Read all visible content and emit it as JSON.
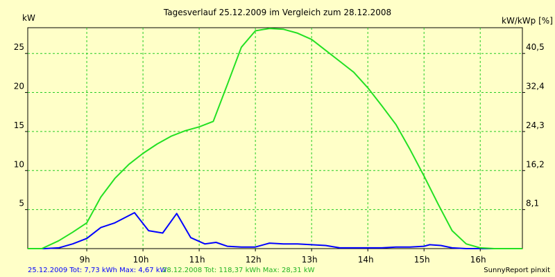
{
  "chart_data": {
    "type": "line",
    "title": "Tagesverlauf 25.12.2009 im Vergleich zum 28.12.2008",
    "ylabel_left": "kW",
    "ylabel_right": "kW/kWp [%]",
    "xticks": [
      {
        "v": 9,
        "label": "9h"
      },
      {
        "v": 10,
        "label": "10h"
      },
      {
        "v": 11,
        "label": "11h"
      },
      {
        "v": 12,
        "label": "12h"
      },
      {
        "v": 13,
        "label": "13h"
      },
      {
        "v": 14,
        "label": "14h"
      },
      {
        "v": 15,
        "label": "15h"
      },
      {
        "v": 16,
        "label": "16h"
      }
    ],
    "yticks_left": [
      {
        "v": 5,
        "label": "5"
      },
      {
        "v": 10,
        "label": "10"
      },
      {
        "v": 15,
        "label": "15"
      },
      {
        "v": 20,
        "label": "20"
      },
      {
        "v": 25,
        "label": "25"
      }
    ],
    "yticks_right": [
      {
        "v": 5,
        "label": "8,1"
      },
      {
        "v": 10,
        "label": "16,2"
      },
      {
        "v": 15,
        "label": "24,3"
      },
      {
        "v": 20,
        "label": "32,4"
      },
      {
        "v": 25,
        "label": "40,5"
      }
    ],
    "xlim": [
      7.95,
      16.75
    ],
    "ylim": [
      0,
      28.3
    ],
    "grid": true,
    "series": [
      {
        "name": "25.12.2009",
        "color": "#0000ff",
        "points": [
          [
            7.95,
            0
          ],
          [
            8.25,
            0
          ],
          [
            8.5,
            0.1
          ],
          [
            8.75,
            0.6
          ],
          [
            9.0,
            1.3
          ],
          [
            9.25,
            2.7
          ],
          [
            9.5,
            3.3
          ],
          [
            9.85,
            4.6
          ],
          [
            10.1,
            2.3
          ],
          [
            10.35,
            2.0
          ],
          [
            10.6,
            4.5
          ],
          [
            10.85,
            1.4
          ],
          [
            11.1,
            0.6
          ],
          [
            11.3,
            0.8
          ],
          [
            11.5,
            0.3
          ],
          [
            11.75,
            0.2
          ],
          [
            12.0,
            0.2
          ],
          [
            12.25,
            0.7
          ],
          [
            12.5,
            0.6
          ],
          [
            12.75,
            0.6
          ],
          [
            13.0,
            0.5
          ],
          [
            13.25,
            0.4
          ],
          [
            13.5,
            0.1
          ],
          [
            13.75,
            0.1
          ],
          [
            14.0,
            0.1
          ],
          [
            14.25,
            0.1
          ],
          [
            14.5,
            0.2
          ],
          [
            14.75,
            0.2
          ],
          [
            15.0,
            0.3
          ],
          [
            15.1,
            0.5
          ],
          [
            15.3,
            0.4
          ],
          [
            15.5,
            0.1
          ],
          [
            15.75,
            0
          ],
          [
            16.0,
            0
          ],
          [
            16.25,
            0
          ],
          [
            16.75,
            0
          ]
        ]
      },
      {
        "name": "28.12.2008",
        "color": "#22e022",
        "points": [
          [
            7.95,
            0
          ],
          [
            8.2,
            0
          ],
          [
            8.5,
            1.0
          ],
          [
            8.75,
            2.1
          ],
          [
            9.0,
            3.3
          ],
          [
            9.25,
            6.6
          ],
          [
            9.5,
            9.0
          ],
          [
            9.75,
            10.8
          ],
          [
            10.0,
            12.2
          ],
          [
            10.25,
            13.4
          ],
          [
            10.5,
            14.4
          ],
          [
            10.75,
            15.1
          ],
          [
            11.0,
            15.6
          ],
          [
            11.25,
            16.3
          ],
          [
            11.5,
            21.0
          ],
          [
            11.75,
            25.8
          ],
          [
            12.0,
            27.9
          ],
          [
            12.25,
            28.2
          ],
          [
            12.5,
            28.1
          ],
          [
            12.75,
            27.6
          ],
          [
            13.0,
            26.8
          ],
          [
            13.25,
            25.4
          ],
          [
            13.5,
            24.0
          ],
          [
            13.75,
            22.6
          ],
          [
            14.0,
            20.6
          ],
          [
            14.25,
            18.3
          ],
          [
            14.5,
            15.9
          ],
          [
            14.75,
            12.7
          ],
          [
            15.0,
            9.3
          ],
          [
            15.25,
            5.7
          ],
          [
            15.5,
            2.3
          ],
          [
            15.75,
            0.6
          ],
          [
            16.0,
            0.1
          ],
          [
            16.25,
            0
          ],
          [
            16.75,
            0
          ]
        ]
      }
    ]
  },
  "footer": {
    "blue_text": "25.12.2009 Tot: 7,73 kWh Max: 4,67 kW",
    "green_text": "28.12.2008 Tot: 118,37 kWh Max: 28,31 kW",
    "credit": "SunnyReport pinxit"
  }
}
